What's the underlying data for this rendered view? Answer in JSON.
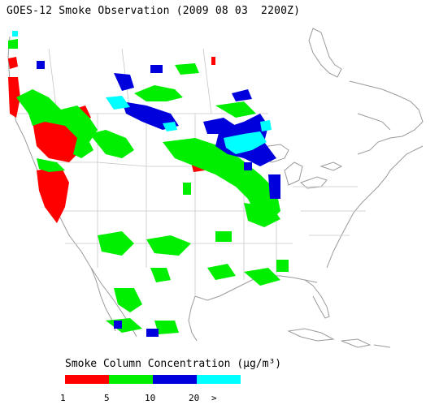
{
  "title": "GOES-12 Smoke Observation (2009 08 03  2200Z)",
  "legend": {
    "title": "Smoke Column Concentration (μg/m³)",
    "bins": [
      {
        "range": "1-5",
        "color": "#ff0000"
      },
      {
        "range": "5-10",
        "color": "#00ee00"
      },
      {
        "range": "10-20",
        "color": "#0000dd"
      },
      {
        "range": ">20",
        "color": "#00ffff"
      }
    ],
    "ticks": [
      "1",
      "5",
      "10",
      "20",
      ">"
    ]
  },
  "map_style": {
    "border_color": "#c8c8c8",
    "coast_color": "#9a9a9a"
  }
}
